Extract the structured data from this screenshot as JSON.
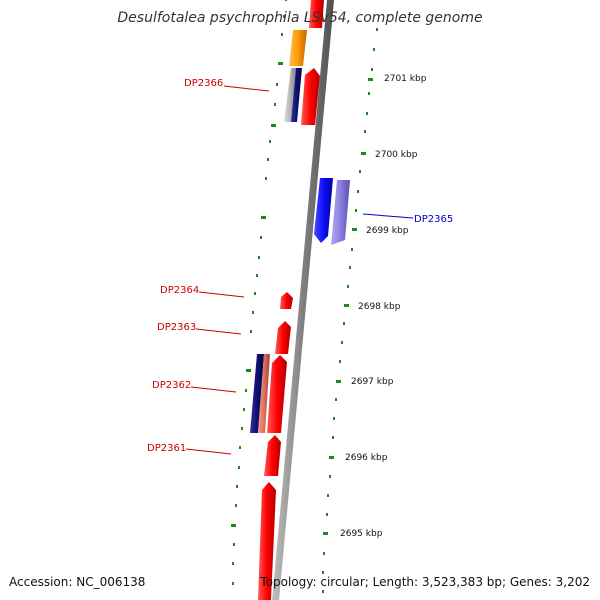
{
  "title": "Desulfotalea psychrophila LSv54, complete genome",
  "accession": "Accession: NC_006138",
  "summary": "Topology: circular; Length: 3,523,383 bp; Genes: 3,202",
  "colors": {
    "backbone": "#888888",
    "tick_dots": "#1a8a1a",
    "gene_red": "#ff0000",
    "gene_blue": "#1010ff",
    "gene_lightblue": "#8a7fe0",
    "gene_navy": "#101070",
    "gene_orange": "#ff9900",
    "gene_salmon": "#e07060",
    "gene_gray": "#b8b8b8",
    "label_red": "#cc0000",
    "label_blue": "#0000cc"
  },
  "kbp_labels": [
    "2701 kbp",
    "2700 kbp",
    "2699 kbp",
    "2698 kbp",
    "2697 kbp",
    "2696 kbp",
    "2695 kbp"
  ],
  "gene_labels": [
    {
      "id": "DP2366",
      "color": "red"
    },
    {
      "id": "DP2365",
      "color": "blue"
    },
    {
      "id": "DP2364",
      "color": "red"
    },
    {
      "id": "DP2363",
      "color": "red"
    },
    {
      "id": "DP2362",
      "color": "red"
    },
    {
      "id": "DP2361",
      "color": "red"
    }
  ]
}
